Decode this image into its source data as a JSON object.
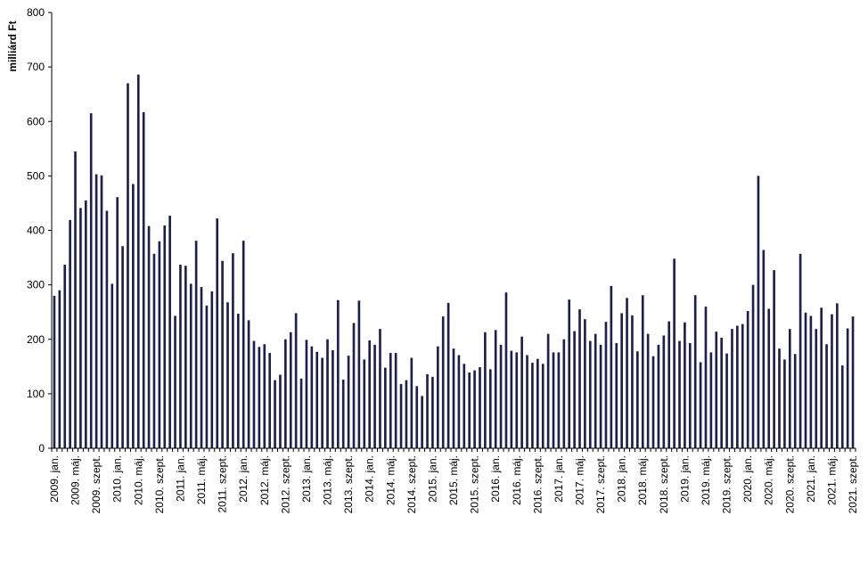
{
  "chart_data": {
    "type": "bar",
    "title": "",
    "xlabel": "",
    "ylabel": "milliárd Ft",
    "ylim": [
      0,
      800
    ],
    "yticks": [
      0,
      100,
      200,
      300,
      400,
      500,
      600,
      700,
      800
    ],
    "grid": false,
    "legend": "none",
    "bar_color": "#1f1f4d",
    "categories": [
      "2009. jan.",
      "2009. febr.",
      "2009. márc.",
      "2009. ápr.",
      "2009. máj.",
      "2009. jún.",
      "2009. júl.",
      "2009. aug.",
      "2009. szept.",
      "2009. okt.",
      "2009. nov.",
      "2009. dec.",
      "2010. jan.",
      "2010. febr.",
      "2010. márc.",
      "2010. ápr.",
      "2010. máj.",
      "2010. jún.",
      "2010. júl.",
      "2010. aug.",
      "2010. szept.",
      "2010. okt.",
      "2010. nov.",
      "2010. dec.",
      "2011. jan.",
      "2011. febr.",
      "2011. márc.",
      "2011. ápr.",
      "2011. máj.",
      "2011. jún.",
      "2011. júl.",
      "2011. aug.",
      "2011. szept.",
      "2011. okt.",
      "2011. nov.",
      "2011. dec.",
      "2012. jan.",
      "2012. febr.",
      "2012. márc.",
      "2012. ápr.",
      "2012. máj.",
      "2012. jún.",
      "2012. júl.",
      "2012. aug.",
      "2012. szept.",
      "2012. okt.",
      "2012. nov.",
      "2012. dec.",
      "2013. jan.",
      "2013. febr.",
      "2013. márc.",
      "2013. ápr.",
      "2013. máj.",
      "2013. jún.",
      "2013. júl.",
      "2013. aug.",
      "2013. szept.",
      "2013. okt.",
      "2013. nov.",
      "2013. dec.",
      "2014. jan.",
      "2014. febr.",
      "2014. márc.",
      "2014. ápr.",
      "2014. máj.",
      "2014. jún.",
      "2014. júl.",
      "2014. aug.",
      "2014. szept.",
      "2014. okt.",
      "2014. nov.",
      "2014. dec.",
      "2015. jan.",
      "2015. febr.",
      "2015. márc.",
      "2015. ápr.",
      "2015. máj.",
      "2015. jún.",
      "2015. júl.",
      "2015. aug.",
      "2015. szept.",
      "2015. okt.",
      "2015. nov.",
      "2015. dec.",
      "2016. jan.",
      "2016. febr.",
      "2016. márc.",
      "2016. ápr.",
      "2016. máj.",
      "2016. jún.",
      "2016. júl.",
      "2016. aug.",
      "2016. szept.",
      "2016. okt.",
      "2016. nov.",
      "2016. dec.",
      "2017. jan.",
      "2017. febr.",
      "2017. márc.",
      "2017. ápr.",
      "2017. máj.",
      "2017. jún.",
      "2017. júl.",
      "2017. aug.",
      "2017. szept.",
      "2017. okt.",
      "2017. nov.",
      "2017. dec.",
      "2018. jan.",
      "2018. febr.",
      "2018. márc.",
      "2018. ápr.",
      "2018. máj.",
      "2018. jún.",
      "2018. júl.",
      "2018. aug.",
      "2018. szept.",
      "2018. okt.",
      "2018. nov.",
      "2018. dec.",
      "2019. jan.",
      "2019. febr.",
      "2019. márc.",
      "2019. ápr.",
      "2019. máj.",
      "2019. jún.",
      "2019. júl.",
      "2019. aug.",
      "2019. szept.",
      "2019. okt.",
      "2019. nov.",
      "2019. dec.",
      "2020. jan.",
      "2020. febr.",
      "2020. márc.",
      "2020. ápr.",
      "2020. máj.",
      "2020. jún.",
      "2020. júl.",
      "2020. aug.",
      "2020. szept.",
      "2020. okt.",
      "2020. nov.",
      "2020. dec.",
      "2021. jan.",
      "2021. febr.",
      "2021. márc.",
      "2021. ápr.",
      "2021. máj.",
      "2021. jún.",
      "2021. júl.",
      "2021. aug.",
      "2021. szept."
    ],
    "values": [
      280,
      290,
      337,
      419,
      545,
      441,
      455,
      615,
      503,
      501,
      436,
      302,
      461,
      371,
      670,
      485,
      686,
      617,
      408,
      357,
      380,
      409,
      427,
      243,
      337,
      335,
      302,
      381,
      296,
      262,
      288,
      422,
      344,
      268,
      358,
      247,
      381,
      235,
      197,
      186,
      191,
      175,
      125,
      135,
      200,
      213,
      248,
      128,
      199,
      187,
      177,
      166,
      200,
      180,
      272,
      126,
      170,
      230,
      271,
      163,
      198,
      190,
      219,
      148,
      175,
      175,
      118,
      125,
      166,
      114,
      96,
      136,
      131,
      187,
      242,
      267,
      183,
      171,
      155,
      139,
      143,
      149,
      213,
      145,
      217,
      190,
      286,
      179,
      176,
      205,
      171,
      157,
      164,
      155,
      210,
      176,
      176,
      200,
      273,
      215,
      255,
      237,
      197,
      210,
      190,
      232,
      298,
      193,
      248,
      276,
      244,
      178,
      281,
      210,
      169,
      190,
      207,
      233,
      348,
      197,
      231,
      193,
      281,
      158,
      260,
      176,
      214,
      203,
      174,
      219,
      225,
      228,
      252,
      300,
      500,
      364,
      256,
      327,
      183,
      163,
      219,
      173,
      357,
      249,
      243,
      219,
      258,
      191,
      246,
      266,
      152,
      220,
      242
    ],
    "tick_label_every": 4
  }
}
